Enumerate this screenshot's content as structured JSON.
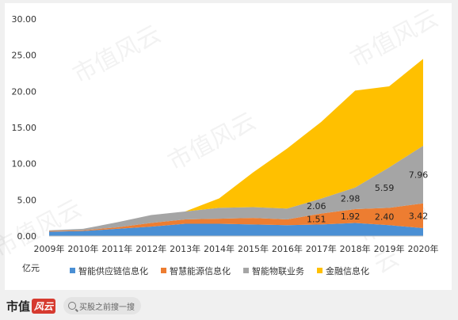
{
  "unit_label": "亿元",
  "watermark": "市值风云",
  "footer": {
    "brand": "市值",
    "brand_badge": "风云",
    "search_placeholder": "买股之前搜一搜"
  },
  "chart_data": {
    "type": "area",
    "stacked": true,
    "x": [
      "2009年",
      "2010年",
      "2011年",
      "2012年",
      "2013年",
      "2014年",
      "2015年",
      "2016年",
      "2017年",
      "2018年",
      "2019年",
      "2020年"
    ],
    "ylim": [
      0,
      30
    ],
    "yticks": [
      "0.00",
      "5.00",
      "10.00",
      "15.00",
      "20.00",
      "25.00",
      "30.00"
    ],
    "legend_position": "bottom",
    "grid": false,
    "series": [
      {
        "name": "智能供应链信息化",
        "color": "#4a8fd4",
        "values": [
          0.6,
          0.7,
          1.0,
          1.3,
          1.7,
          1.7,
          1.6,
          1.5,
          1.6,
          1.8,
          1.5,
          1.1
        ]
      },
      {
        "name": "智慧能源信息化",
        "color": "#ed7d31",
        "values": [
          0.1,
          0.1,
          0.2,
          0.5,
          0.6,
          0.7,
          0.9,
          0.8,
          1.51,
          1.92,
          2.4,
          3.42
        ]
      },
      {
        "name": "智能物联业务",
        "color": "#a5a5a5",
        "values": [
          0.1,
          0.2,
          0.7,
          1.1,
          1.1,
          1.5,
          1.5,
          1.5,
          2.06,
          2.98,
          5.59,
          7.96
        ]
      },
      {
        "name": "金融信息化",
        "color": "#ffc000",
        "values": [
          0.0,
          0.0,
          0.0,
          0.0,
          0.0,
          1.3,
          4.8,
          8.3,
          10.6,
          13.4,
          11.2,
          12.0
        ]
      }
    ],
    "data_labels": [
      {
        "series": 1,
        "index": 8,
        "text": "1.51"
      },
      {
        "series": 1,
        "index": 9,
        "text": "1.92"
      },
      {
        "series": 1,
        "index": 10,
        "text": "2.40"
      },
      {
        "series": 1,
        "index": 11,
        "text": "3.42"
      },
      {
        "series": 2,
        "index": 8,
        "text": "2.06"
      },
      {
        "series": 2,
        "index": 9,
        "text": "2.98"
      },
      {
        "series": 2,
        "index": 10,
        "text": "5.59"
      },
      {
        "series": 2,
        "index": 11,
        "text": "7.96"
      }
    ]
  }
}
